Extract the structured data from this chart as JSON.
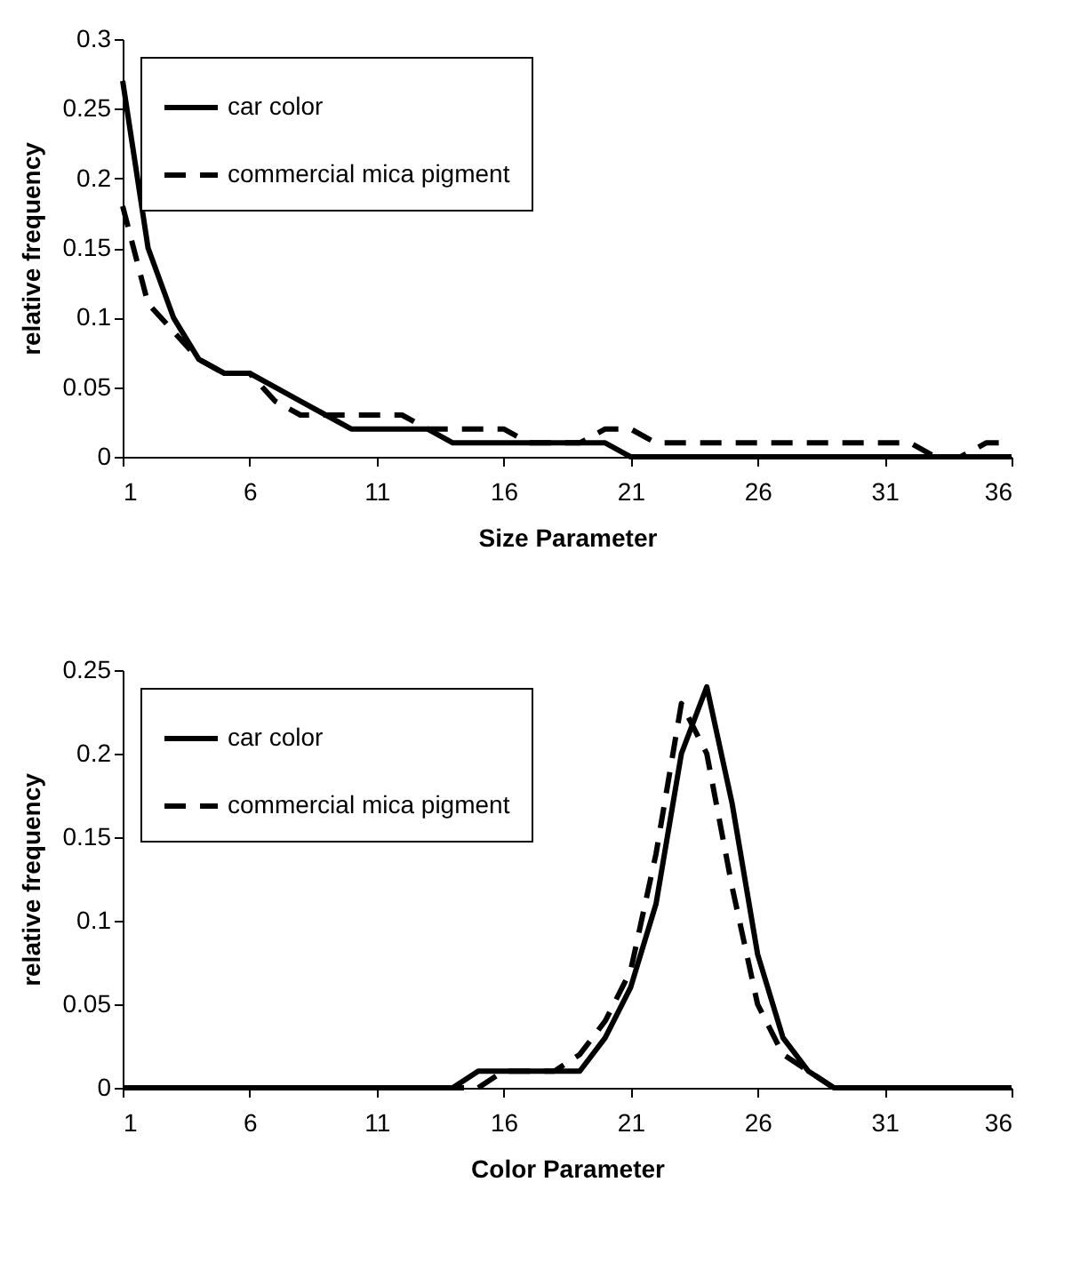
{
  "chart_data": [
    {
      "type": "line",
      "xlabel": "Size Parameter",
      "ylabel": "relative frequency",
      "xlim": [
        1,
        36
      ],
      "xticks": [
        1,
        6,
        11,
        16,
        21,
        26,
        31,
        36
      ],
      "ylim": [
        0,
        0.3
      ],
      "yticks": [
        0,
        0.05,
        0.1,
        0.15,
        0.2,
        0.25,
        0.3
      ],
      "grid": false,
      "legend": "top left",
      "x": [
        1,
        2,
        3,
        4,
        5,
        6,
        7,
        8,
        9,
        10,
        11,
        12,
        13,
        14,
        15,
        16,
        17,
        18,
        19,
        20,
        21,
        22,
        23,
        24,
        25,
        26,
        27,
        28,
        29,
        30,
        31,
        32,
        33,
        34,
        35,
        36
      ],
      "series": [
        {
          "name": "car color",
          "color": "#000000",
          "line_style": "solid",
          "values": [
            0.27,
            0.15,
            0.1,
            0.07,
            0.06,
            0.06,
            0.05,
            0.04,
            0.03,
            0.02,
            0.02,
            0.02,
            0.02,
            0.01,
            0.01,
            0.01,
            0.01,
            0.01,
            0.01,
            0.01,
            0,
            0,
            0,
            0,
            0,
            0,
            0,
            0,
            0,
            0,
            0,
            0,
            0,
            0,
            0,
            0
          ]
        },
        {
          "name": "commercial mica pigment",
          "color": "#000000",
          "line_style": "dashed",
          "values": [
            0.18,
            0.11,
            0.09,
            0.07,
            0.06,
            0.06,
            0.04,
            0.03,
            0.03,
            0.03,
            0.03,
            0.03,
            0.02,
            0.02,
            0.02,
            0.02,
            0.01,
            0.01,
            0.01,
            0.02,
            0.02,
            0.01,
            0.01,
            0.01,
            0.01,
            0.01,
            0.01,
            0.01,
            0.01,
            0.01,
            0.01,
            0.01,
            0,
            0,
            0.01,
            0.01
          ]
        }
      ]
    },
    {
      "type": "line",
      "xlabel": "Color Parameter",
      "ylabel": "relative frequency",
      "xlim": [
        1,
        36
      ],
      "xticks": [
        1,
        6,
        11,
        16,
        21,
        26,
        31,
        36
      ],
      "ylim": [
        0,
        0.25
      ],
      "yticks": [
        0,
        0.05,
        0.1,
        0.15,
        0.2,
        0.25
      ],
      "grid": false,
      "legend": "top left",
      "x": [
        1,
        2,
        3,
        4,
        5,
        6,
        7,
        8,
        9,
        10,
        11,
        12,
        13,
        14,
        15,
        16,
        17,
        18,
        19,
        20,
        21,
        22,
        23,
        24,
        25,
        26,
        27,
        28,
        29,
        30,
        31,
        32,
        33,
        34,
        35,
        36
      ],
      "series": [
        {
          "name": "car color",
          "color": "#000000",
          "line_style": "solid",
          "values": [
            0,
            0,
            0,
            0,
            0,
            0,
            0,
            0,
            0,
            0,
            0,
            0,
            0,
            0,
            0.01,
            0.01,
            0.01,
            0.01,
            0.01,
            0.03,
            0.06,
            0.11,
            0.2,
            0.24,
            0.17,
            0.08,
            0.03,
            0.01,
            0,
            0,
            0,
            0,
            0,
            0,
            0,
            0
          ]
        },
        {
          "name": "commercial mica pigment",
          "color": "#000000",
          "line_style": "dashed",
          "values": [
            0,
            0,
            0,
            0,
            0,
            0,
            0,
            0,
            0,
            0,
            0,
            0,
            0,
            0,
            0,
            0.01,
            0.01,
            0.01,
            0.02,
            0.04,
            0.07,
            0.14,
            0.23,
            0.2,
            0.12,
            0.05,
            0.02,
            0.01,
            0,
            0,
            0,
            0,
            0,
            0,
            0,
            0
          ]
        }
      ]
    }
  ]
}
